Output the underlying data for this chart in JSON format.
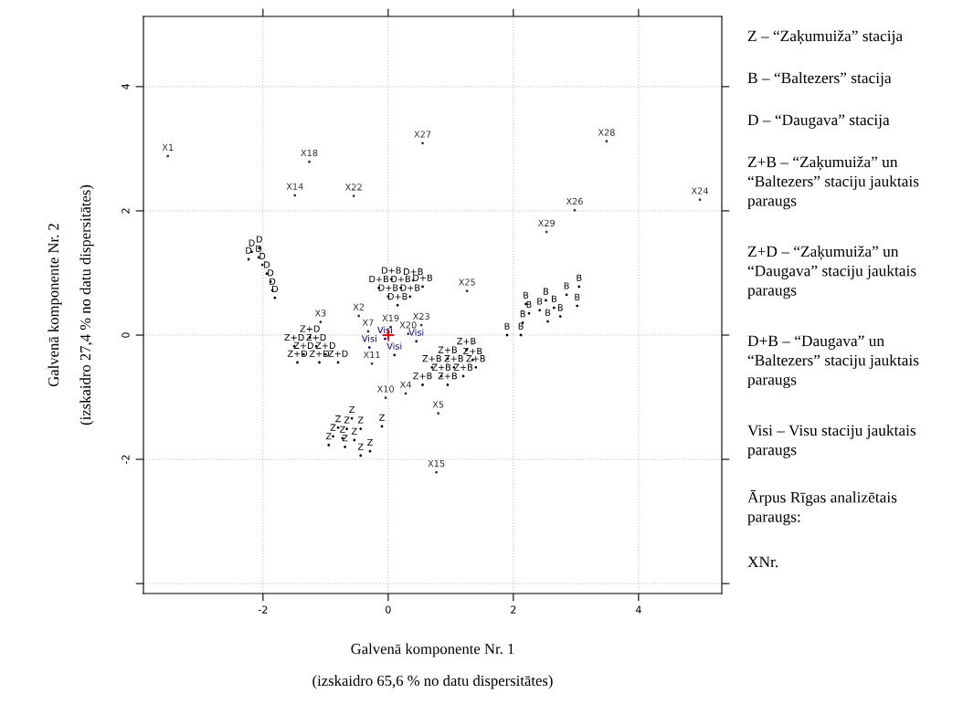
{
  "chart_data": {
    "type": "scatter",
    "xlabel": "Galvenā komponente Nr. 1\n\n(izskaidro 65,6 % no datu dispersitātes)",
    "ylabel": "Galvenā komponente Nr. 2\n\n(izskaidro 27,4 % no datu dispersitātes)",
    "xlim": [
      -3.91,
      5.33
    ],
    "ylim": [
      -4.16,
      5.13
    ],
    "xticks": [
      -2,
      0,
      2,
      4
    ],
    "yticks": [
      {
        "value": -4,
        "label": null
      },
      -2,
      0,
      2,
      4
    ],
    "grid": true,
    "marker": "circle",
    "series": [
      {
        "color": "#000000",
        "x": [
          -2.06,
          -2.18,
          -2.23,
          -2.07,
          -2.01,
          -1.94,
          -1.88,
          -1.85,
          -1.81
        ],
        "values": [
          1.4,
          1.34,
          1.22,
          1.25,
          1.13,
          0.99,
          0.86,
          0.72,
          0.6
        ],
        "value_labels": [
          "D",
          "D",
          "D",
          "D",
          "D",
          "D",
          "D",
          "D",
          "D"
        ]
      },
      {
        "color": "#000000",
        "x": [
          1.9,
          2.12,
          2.15,
          2.25,
          2.2,
          2.42,
          2.52,
          2.65,
          2.75,
          2.55,
          2.85,
          3.05,
          3.02
        ],
        "values": [
          0.0,
          0.0,
          0.2,
          0.35,
          0.5,
          0.4,
          0.56,
          0.44,
          0.3,
          0.22,
          0.65,
          0.78,
          0.47
        ],
        "value_labels": [
          "B",
          "B",
          "B",
          "B",
          "B",
          "B",
          "B",
          "B",
          "B",
          "B",
          "B",
          "B",
          "B"
        ]
      },
      {
        "color": "#000000",
        "x": [
          -0.8,
          -0.58,
          -0.66,
          -0.44,
          -0.88,
          -0.73,
          -0.54,
          -0.95,
          -0.69,
          -0.44,
          -0.29,
          -0.1
        ],
        "values": [
          -1.49,
          -1.34,
          -1.51,
          -1.51,
          -1.63,
          -1.66,
          -1.69,
          -1.77,
          -1.8,
          -1.94,
          -1.87,
          -1.47
        ],
        "value_labels": [
          "Z",
          "Z",
          "Z",
          "Z",
          "Z",
          "Z",
          "Z",
          "Z",
          "Z",
          "Z",
          "Z",
          "Z"
        ]
      },
      {
        "color": "#000000",
        "x": [
          -1.25,
          -1.5,
          -1.15,
          -1.35,
          -1.0,
          -1.45,
          -1.1,
          -0.8
        ],
        "values": [
          -0.04,
          -0.18,
          -0.18,
          -0.31,
          -0.31,
          -0.44,
          -0.44,
          -0.44
        ],
        "value_labels": [
          "Z+D",
          "Z+D",
          "Z+D",
          "Z+D",
          "Z+D",
          "Z+D",
          "Z+D",
          "Z+D"
        ]
      },
      {
        "color": "#000000",
        "x": [
          0.05,
          0.4,
          -0.15,
          0.2,
          0.55,
          0.0,
          0.35,
          0.15
        ],
        "values": [
          0.9,
          0.88,
          0.76,
          0.76,
          0.78,
          0.62,
          0.62,
          0.48
        ],
        "value_labels": [
          "D+B",
          "D+B",
          "D+B",
          "D+B",
          "D+B",
          "D+B",
          "D+B",
          "D+B"
        ]
      },
      {
        "color": "#000000",
        "x": [
          1.25,
          0.95,
          1.35,
          0.7,
          1.05,
          1.4,
          0.85,
          1.2,
          0.55,
          0.95
        ],
        "values": [
          -0.24,
          -0.38,
          -0.4,
          -0.52,
          -0.52,
          -0.52,
          -0.66,
          -0.66,
          -0.8,
          -0.8
        ],
        "value_labels": [
          "Z+B",
          "Z+B",
          "Z+B",
          "Z+B",
          "Z+B",
          "Z+B",
          "Z+B",
          "Z+B",
          "Z+B",
          "Z+B"
        ]
      },
      {
        "color": "#000080",
        "x": [
          -0.05,
          0.45,
          0.1,
          -0.3
        ],
        "values": [
          -0.06,
          -0.1,
          -0.32,
          -0.2
        ],
        "value_labels": [
          "Visi",
          "Visi",
          "Visi",
          "Visi"
        ]
      },
      {
        "color": "#333333",
        "x": [
          -3.52,
          -1.26,
          -1.49,
          -0.55,
          0.55,
          3.49,
          2.98,
          4.98,
          2.53,
          1.26,
          -1.08,
          -0.47,
          0.53,
          -0.26,
          0.28,
          -0.04,
          0.8,
          0.77,
          -0.32,
          0.04,
          0.32
        ],
        "values": [
          2.88,
          2.79,
          2.25,
          2.24,
          3.09,
          3.12,
          2.01,
          2.18,
          1.66,
          0.71,
          0.21,
          0.31,
          0.16,
          -0.46,
          -0.94,
          -1.01,
          -1.26,
          -2.21,
          0.06,
          0.13,
          0.02
        ],
        "value_labels": [
          "X1",
          "X18",
          "X14",
          "X22",
          "X27",
          "X28",
          "X26",
          "X24",
          "X29",
          "X25",
          "X3",
          "X2",
          "X23",
          "X11",
          "X4",
          "X10",
          "X5",
          "X15",
          "X7",
          "X19",
          "X20"
        ]
      },
      {
        "color": "#ff0000",
        "marker": "cross",
        "x": [
          0
        ],
        "values": [
          0
        ]
      }
    ],
    "annotations": [
      "Z – “Zaķumuiža” stacija",
      "B – “Baltezers” stacija",
      "D – “Daugava” stacija",
      "Z+B – “Zaķumuiža” un\n“Baltezers” staciju jauktais\nparaugs",
      "Z+D – “Zaķumuiža” un\n“Daugava” staciju jauktais\nparaugs",
      "D+B – “Daugava” un\n“Baltezers” staciju jauktais\nparaugs",
      "Visi – Visu staciju jauktais\nparaugs",
      "Ārpus Rīgas analizētais\nparaugs:",
      "XNr."
    ]
  }
}
